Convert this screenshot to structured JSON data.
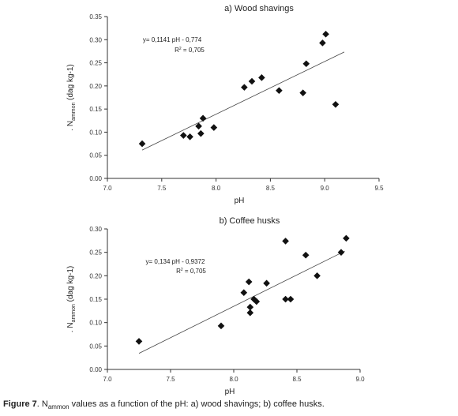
{
  "figure": {
    "caption_label": "Figure 7",
    "caption_pre": ". N",
    "caption_sub": "ammon",
    "caption_post": " values as a function of the pH: a) wood shavings; b) coffee husks."
  },
  "chart_data": [
    {
      "type": "scatter",
      "title": "a) Wood shavings",
      "xlabel": "pH",
      "ylabel_main": "N",
      "ylabel_sub": "ammon",
      "ylabel_unit": " (dag kg-1)",
      "ylabel_prefix": ".",
      "xlim": [
        7.0,
        9.5
      ],
      "ylim": [
        0.0,
        0.35
      ],
      "xticks": [
        7.0,
        7.5,
        8.0,
        8.5,
        9.0,
        9.5
      ],
      "xtick_labels": [
        "7.0",
        "7.5",
        "8.0",
        "8.5",
        "9.0",
        "9.5"
      ],
      "yticks": [
        0.0,
        0.05,
        0.1,
        0.15,
        0.2,
        0.25,
        0.3,
        0.35
      ],
      "ytick_labels": [
        "0.00",
        "0.05",
        "0.10",
        "0.15",
        "0.20",
        "0.25",
        "0.30",
        "0.35"
      ],
      "equation": "y= 0,1141 pH - 0,774",
      "r2_label": "R",
      "r2_value": " = 0,705",
      "fit": {
        "slope": 0.1141,
        "intercept": -0.774,
        "x_range": [
          7.32,
          9.18
        ]
      },
      "points": [
        {
          "x": 7.32,
          "y": 0.075
        },
        {
          "x": 7.7,
          "y": 0.093
        },
        {
          "x": 7.76,
          "y": 0.09
        },
        {
          "x": 7.84,
          "y": 0.113
        },
        {
          "x": 7.86,
          "y": 0.097
        },
        {
          "x": 7.88,
          "y": 0.13
        },
        {
          "x": 7.98,
          "y": 0.11
        },
        {
          "x": 8.26,
          "y": 0.197
        },
        {
          "x": 8.33,
          "y": 0.21
        },
        {
          "x": 8.42,
          "y": 0.218
        },
        {
          "x": 8.58,
          "y": 0.19
        },
        {
          "x": 8.8,
          "y": 0.185
        },
        {
          "x": 8.83,
          "y": 0.248
        },
        {
          "x": 8.98,
          "y": 0.293
        },
        {
          "x": 9.01,
          "y": 0.312
        },
        {
          "x": 9.1,
          "y": 0.16
        }
      ]
    },
    {
      "type": "scatter",
      "title": "b) Coffee husks",
      "xlabel": "pH",
      "ylabel_main": "N",
      "ylabel_sub": "ammon",
      "ylabel_unit": " (dag kg-1)",
      "ylabel_prefix": ".",
      "xlim": [
        7.0,
        9.0
      ],
      "ylim": [
        0.0,
        0.3
      ],
      "xticks": [
        7.0,
        7.5,
        8.0,
        8.5,
        9.0
      ],
      "xtick_labels": [
        "7.0",
        "7.5",
        "8.0",
        "8.5",
        "9.0"
      ],
      "yticks": [
        0.0,
        0.05,
        0.1,
        0.15,
        0.2,
        0.25,
        0.3
      ],
      "ytick_labels": [
        "0.00",
        "0.05",
        "0.10",
        "0.15",
        "0.20",
        "0.25",
        "0.30"
      ],
      "equation": "y= 0,134 pH - 0,9372",
      "r2_label": "R",
      "r2_value": " = 0,705",
      "fit": {
        "slope": 0.134,
        "intercept": -0.9372,
        "x_range": [
          7.25,
          8.88
        ]
      },
      "points": [
        {
          "x": 7.25,
          "y": 0.06
        },
        {
          "x": 7.9,
          "y": 0.093
        },
        {
          "x": 8.08,
          "y": 0.164
        },
        {
          "x": 8.12,
          "y": 0.187
        },
        {
          "x": 8.13,
          "y": 0.133
        },
        {
          "x": 8.13,
          "y": 0.121
        },
        {
          "x": 8.16,
          "y": 0.15
        },
        {
          "x": 8.18,
          "y": 0.145
        },
        {
          "x": 8.26,
          "y": 0.184
        },
        {
          "x": 8.41,
          "y": 0.15
        },
        {
          "x": 8.41,
          "y": 0.274
        },
        {
          "x": 8.45,
          "y": 0.15
        },
        {
          "x": 8.57,
          "y": 0.244
        },
        {
          "x": 8.66,
          "y": 0.2
        },
        {
          "x": 8.85,
          "y": 0.25
        },
        {
          "x": 8.89,
          "y": 0.28
        }
      ]
    }
  ]
}
